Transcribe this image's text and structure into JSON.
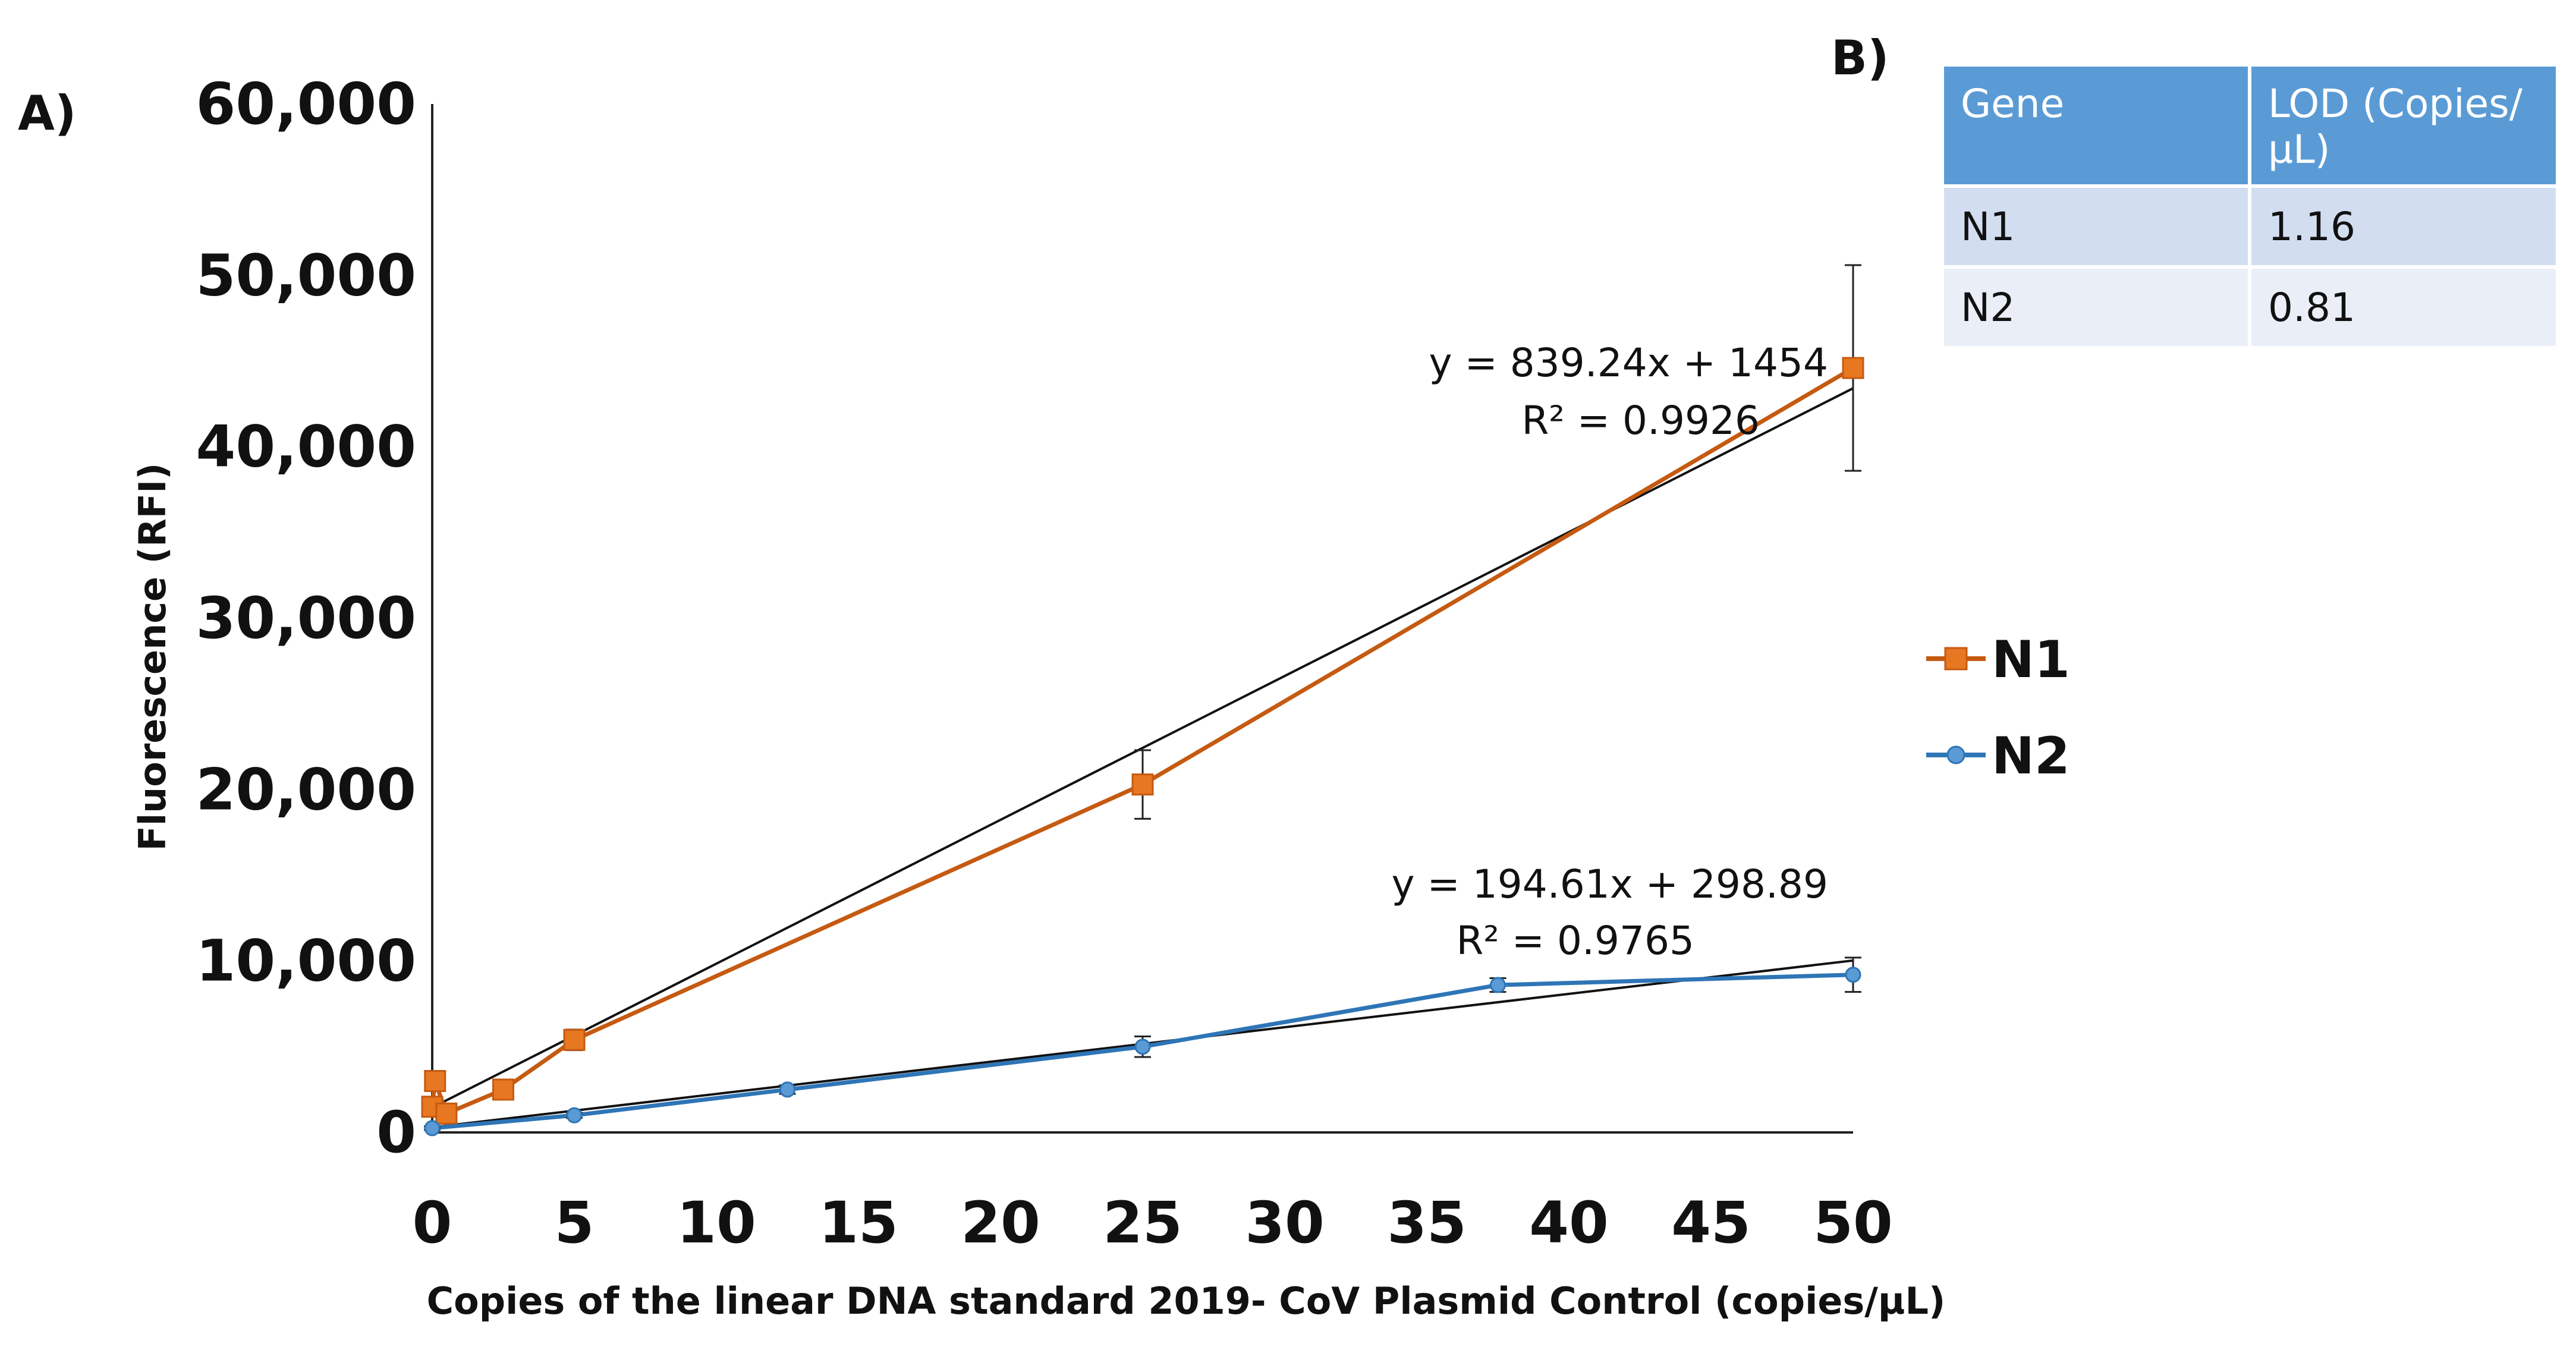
{
  "panel_a_label": "A)",
  "panel_b_label": "B)",
  "chart_data": {
    "type": "line",
    "title": "",
    "xlabel": "Copies of the linear DNA standard 2019- CoV Plasmid Control (copies/µL)",
    "ylabel": "Fluorescence (RFI)",
    "xlim": [
      0,
      50
    ],
    "ylim": [
      0,
      60000
    ],
    "x_ticks": [
      0,
      5,
      10,
      15,
      20,
      25,
      30,
      35,
      40,
      45,
      50
    ],
    "y_ticks": [
      0,
      10000,
      20000,
      30000,
      40000,
      50000,
      60000
    ],
    "y_tick_labels": [
      "0",
      "10,000",
      "20,000",
      "30,000",
      "40,000",
      "50,000",
      "60,000"
    ],
    "legend_position": "right",
    "series": [
      {
        "name": "N1",
        "color": "#c55a11",
        "marker": "square",
        "points": [
          {
            "x": 0,
            "y": 1500,
            "err": 400
          },
          {
            "x": 0.1,
            "y": 3000,
            "err": 500
          },
          {
            "x": 0.5,
            "y": 1100,
            "err": 300
          },
          {
            "x": 2.5,
            "y": 2500,
            "err": 300
          },
          {
            "x": 5,
            "y": 5400,
            "err": 600
          },
          {
            "x": 25,
            "y": 20300,
            "err": 2000
          },
          {
            "x": 50,
            "y": 44600,
            "err": 6000
          }
        ],
        "trendline": {
          "slope": 839.24,
          "intercept": 1454,
          "equation": "y = 839.24x + 1454",
          "r2": "R² = 0.9926"
        }
      },
      {
        "name": "N2",
        "color": "#2e75b6",
        "marker": "circle",
        "points": [
          {
            "x": 0,
            "y": 250,
            "err": 100
          },
          {
            "x": 5,
            "y": 1000,
            "err": 150
          },
          {
            "x": 12.5,
            "y": 2500,
            "err": 250
          },
          {
            "x": 25,
            "y": 5000,
            "err": 600
          },
          {
            "x": 37.5,
            "y": 8600,
            "err": 400
          },
          {
            "x": 50,
            "y": 9200,
            "err": 1000
          }
        ],
        "trendline": {
          "slope": 194.61,
          "intercept": 298.89,
          "equation": "y = 194.61x + 298.89",
          "r2": "R² = 0.9765"
        }
      }
    ]
  },
  "lod_table": {
    "headers": [
      "Gene",
      "LOD (Copies/µL)"
    ],
    "rows": [
      {
        "gene": "N1",
        "lod": "1.16"
      },
      {
        "gene": "N2",
        "lod": "0.81"
      }
    ]
  }
}
